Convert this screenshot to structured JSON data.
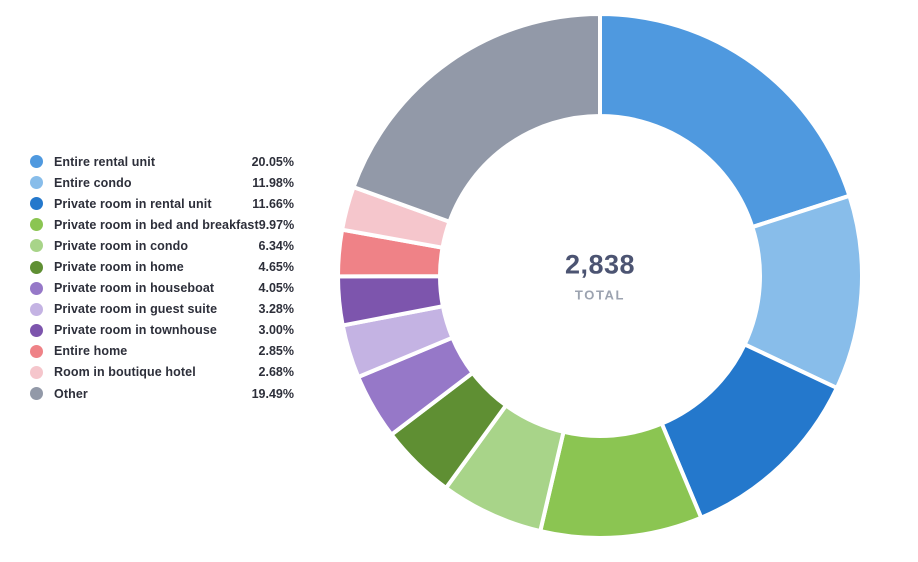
{
  "chart_data": {
    "type": "pie",
    "variant": "donut",
    "title": "",
    "legend_position": "left",
    "start_angle_deg": 0,
    "direction": "clockwise",
    "center": {
      "total_value": "2,838",
      "total_label": "TOTAL"
    },
    "items": [
      {
        "label": "Entire rental unit",
        "percent": 20.05,
        "percent_label": "20.05%",
        "color": "#4f99df"
      },
      {
        "label": "Entire condo",
        "percent": 11.98,
        "percent_label": "11.98%",
        "color": "#88bdea"
      },
      {
        "label": "Private room in rental unit",
        "percent": 11.66,
        "percent_label": "11.66%",
        "color": "#2478cc"
      },
      {
        "label": "Private room in bed and breakfast",
        "percent": 9.97,
        "percent_label": "9.97%",
        "color": "#8bc552"
      },
      {
        "label": "Private room in condo",
        "percent": 6.34,
        "percent_label": "6.34%",
        "color": "#a8d489"
      },
      {
        "label": "Private room in home",
        "percent": 4.65,
        "percent_label": "4.65%",
        "color": "#5f8f33"
      },
      {
        "label": "Private room in houseboat",
        "percent": 4.05,
        "percent_label": "4.05%",
        "color": "#9678c8"
      },
      {
        "label": "Private room in guest suite",
        "percent": 3.28,
        "percent_label": "3.28%",
        "color": "#c4b3e3"
      },
      {
        "label": "Private room in townhouse",
        "percent": 3.0,
        "percent_label": "3.00%",
        "color": "#7d55ad"
      },
      {
        "label": "Entire home",
        "percent": 2.85,
        "percent_label": "2.85%",
        "color": "#ef8287"
      },
      {
        "label": "Room in boutique hotel",
        "percent": 2.68,
        "percent_label": "2.68%",
        "color": "#f5c6cc"
      },
      {
        "label": "Other",
        "percent": 19.49,
        "percent_label": "19.49%",
        "color": "#9299a8"
      }
    ],
    "colors": {
      "total_value_text": "#4c5472",
      "total_label_text": "#9ca3b0",
      "legend_text": "#2d2f3a",
      "segment_gap": "#ffffff"
    }
  }
}
